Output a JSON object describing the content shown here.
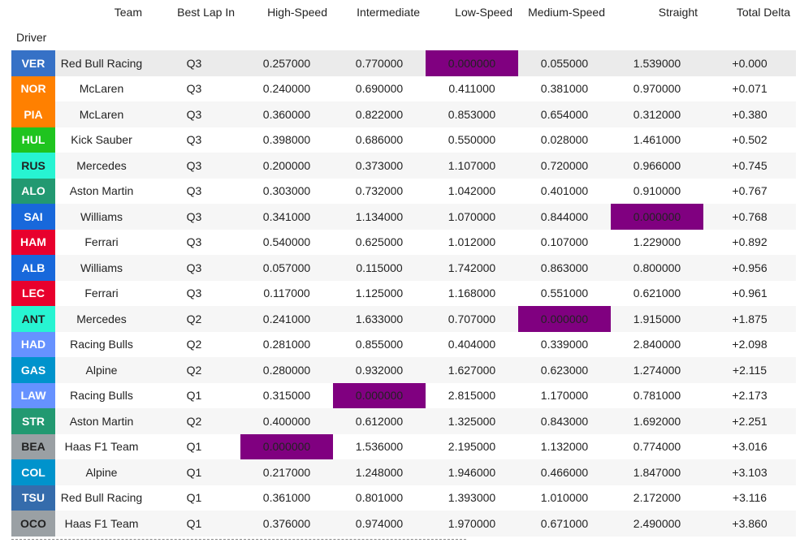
{
  "index_name": "Driver",
  "columns": [
    "Team",
    "Best Lap In",
    "High-Speed",
    "Intermediate",
    "Low-Speed",
    "Medium-Speed",
    "Straight",
    "Total Delta"
  ],
  "rows": [
    [
      "VER",
      "Red Bull Racing",
      "Q3",
      "0.257000",
      "0.770000",
      "0.000000",
      "0.055000",
      "1.539000",
      "+0.000"
    ],
    [
      "NOR",
      "McLaren",
      "Q3",
      "0.240000",
      "0.690000",
      "0.411000",
      "0.381000",
      "0.970000",
      "+0.071"
    ],
    [
      "PIA",
      "McLaren",
      "Q3",
      "0.360000",
      "0.822000",
      "0.853000",
      "0.654000",
      "0.312000",
      "+0.380"
    ],
    [
      "HUL",
      "Kick Sauber",
      "Q3",
      "0.398000",
      "0.686000",
      "0.550000",
      "0.028000",
      "1.461000",
      "+0.502"
    ],
    [
      "RUS",
      "Mercedes",
      "Q3",
      "0.200000",
      "0.373000",
      "1.107000",
      "0.720000",
      "0.966000",
      "+0.745"
    ],
    [
      "ALO",
      "Aston Martin",
      "Q3",
      "0.303000",
      "0.732000",
      "1.042000",
      "0.401000",
      "0.910000",
      "+0.767"
    ],
    [
      "SAI",
      "Williams",
      "Q3",
      "0.341000",
      "1.134000",
      "1.070000",
      "0.844000",
      "0.000000",
      "+0.768"
    ],
    [
      "HAM",
      "Ferrari",
      "Q3",
      "0.540000",
      "0.625000",
      "1.012000",
      "0.107000",
      "1.229000",
      "+0.892"
    ],
    [
      "ALB",
      "Williams",
      "Q3",
      "0.057000",
      "0.115000",
      "1.742000",
      "0.863000",
      "0.800000",
      "+0.956"
    ],
    [
      "LEC",
      "Ferrari",
      "Q3",
      "0.117000",
      "1.125000",
      "1.168000",
      "0.551000",
      "0.621000",
      "+0.961"
    ],
    [
      "ANT",
      "Mercedes",
      "Q2",
      "0.241000",
      "1.633000",
      "0.707000",
      "0.000000",
      "1.915000",
      "+1.875"
    ],
    [
      "HAD",
      "Racing Bulls",
      "Q2",
      "0.281000",
      "0.855000",
      "0.404000",
      "0.339000",
      "2.840000",
      "+2.098"
    ],
    [
      "GAS",
      "Alpine",
      "Q2",
      "0.280000",
      "0.932000",
      "1.627000",
      "0.623000",
      "1.274000",
      "+2.115"
    ],
    [
      "LAW",
      "Racing Bulls",
      "Q1",
      "0.315000",
      "0.000000",
      "2.815000",
      "1.170000",
      "0.781000",
      "+2.173"
    ],
    [
      "STR",
      "Aston Martin",
      "Q2",
      "0.400000",
      "0.612000",
      "1.325000",
      "0.843000",
      "1.692000",
      "+2.251"
    ],
    [
      "BEA",
      "Haas F1 Team",
      "Q1",
      "0.000000",
      "1.536000",
      "2.195000",
      "1.132000",
      "0.774000",
      "+3.016"
    ],
    [
      "COL",
      "Alpine",
      "Q1",
      "0.217000",
      "1.248000",
      "1.946000",
      "0.466000",
      "1.847000",
      "+3.103"
    ],
    [
      "TSU",
      "Red Bull Racing",
      "Q1",
      "0.361000",
      "0.801000",
      "1.393000",
      "1.010000",
      "2.172000",
      "+3.116"
    ],
    [
      "OCO",
      "Haas F1 Team",
      "Q1",
      "0.376000",
      "0.974000",
      "1.970000",
      "0.671000",
      "2.490000",
      "+3.860"
    ]
  ],
  "driver_colors": [
    "#3671C6",
    "#FF8000",
    "#FF8000",
    "#1fc41f",
    "#27F4D2",
    "#229971",
    "#1868DB",
    "#E8002D",
    "#1868DB",
    "#E8002D",
    "#27F4D2",
    "#6692FF",
    "#0093CC",
    "#6692FF",
    "#229971",
    "#9aa0a4",
    "#0093CC",
    "#356CAC",
    "#9aa0a4"
  ]
}
